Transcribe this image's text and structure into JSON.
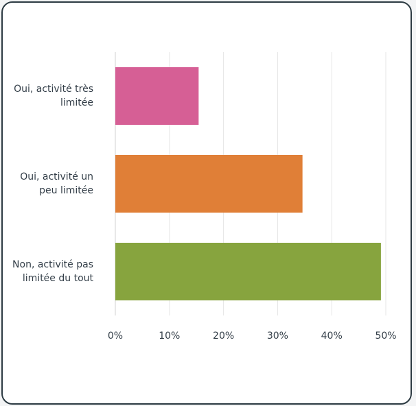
{
  "chart_data": {
    "type": "bar",
    "orientation": "horizontal",
    "categories": [
      "Oui, activité très limitée",
      "Oui, activité un peu limitée",
      "Non, activité pas limitée du tout"
    ],
    "values": [
      15.4,
      34.6,
      49.1
    ],
    "colors": [
      "#d65f95",
      "#e07f37",
      "#87a43e"
    ],
    "xlim": [
      0,
      50
    ],
    "xticks": [
      {
        "value": 0,
        "label": "0%"
      },
      {
        "value": 10,
        "label": "10%"
      },
      {
        "value": 20,
        "label": "20%"
      },
      {
        "value": 30,
        "label": "30%"
      },
      {
        "value": 40,
        "label": "40%"
      },
      {
        "value": 50,
        "label": "50%"
      }
    ],
    "grid": true
  }
}
